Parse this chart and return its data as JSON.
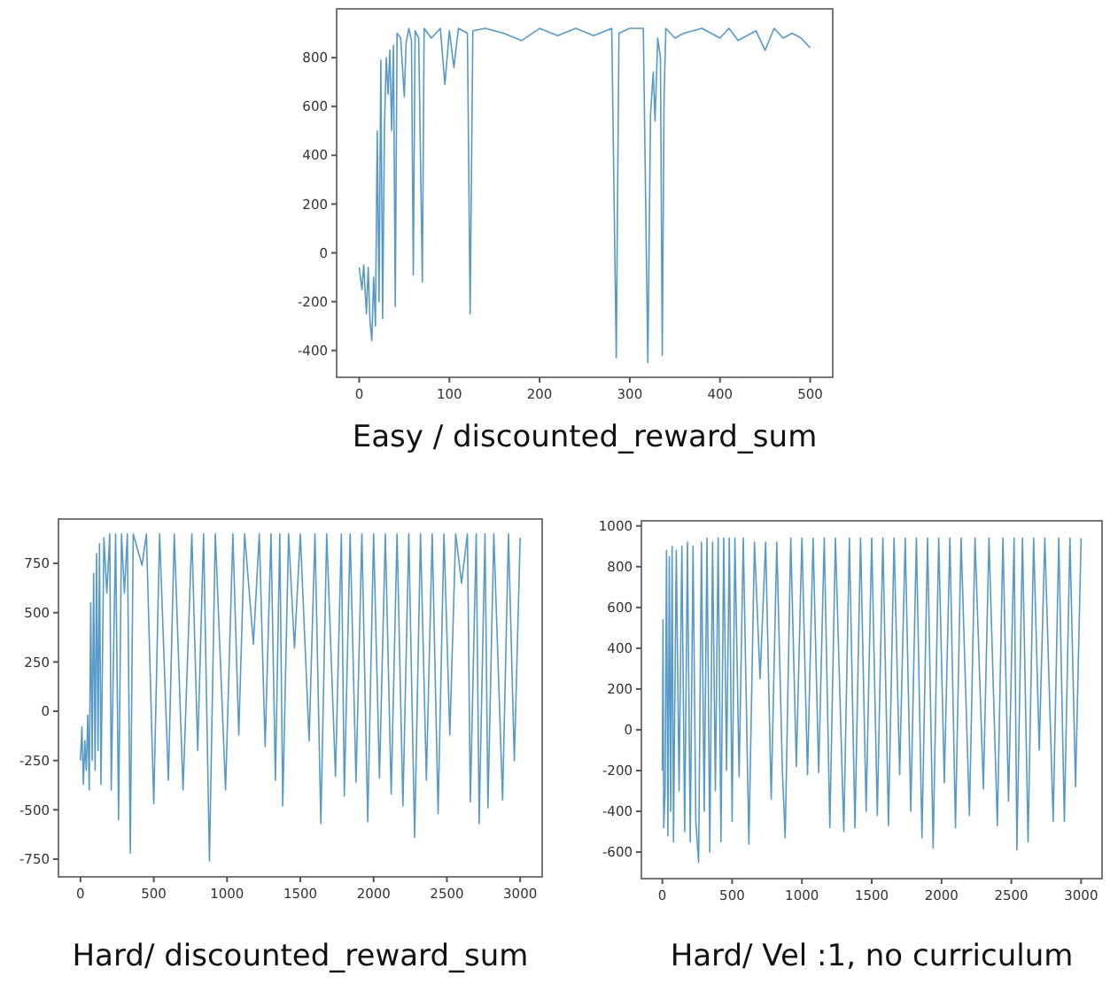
{
  "chart_data": [
    {
      "type": "line",
      "title": "Easy / discounted_reward_sum",
      "xlim": [
        -25,
        525
      ],
      "ylim": [
        -510,
        1000
      ],
      "xticks": [
        0,
        100,
        200,
        300,
        400,
        500
      ],
      "yticks": [
        -400,
        -200,
        0,
        200,
        400,
        600,
        800
      ],
      "x": [
        0,
        3,
        5,
        8,
        10,
        12,
        14,
        16,
        18,
        20,
        22,
        24,
        26,
        28,
        30,
        32,
        34,
        36,
        38,
        40,
        42,
        46,
        50,
        52,
        55,
        58,
        60,
        62,
        66,
        70,
        72,
        80,
        90,
        95,
        100,
        105,
        110,
        120,
        123,
        126,
        140,
        160,
        180,
        200,
        220,
        240,
        260,
        280,
        285,
        288,
        300,
        315,
        320,
        323,
        326,
        328,
        331,
        334,
        336,
        338,
        340,
        350,
        360,
        380,
        400,
        410,
        420,
        440,
        450,
        460,
        470,
        480,
        490,
        500
      ],
      "series": [
        {
          "color": "#1f77b4",
          "values": [
            -60,
            -150,
            -50,
            -250,
            -60,
            -280,
            -360,
            -100,
            -300,
            500,
            -200,
            790,
            -270,
            510,
            800,
            650,
            830,
            500,
            850,
            -220,
            900,
            880,
            640,
            860,
            920,
            870,
            -90,
            910,
            880,
            -120,
            920,
            880,
            920,
            690,
            910,
            760,
            920,
            900,
            -250,
            910,
            920,
            900,
            870,
            920,
            890,
            920,
            890,
            920,
            -430,
            900,
            920,
            920,
            -450,
            570,
            740,
            540,
            880,
            800,
            -420,
            640,
            920,
            880,
            900,
            920,
            880,
            920,
            870,
            910,
            830,
            920,
            880,
            900,
            880,
            840
          ]
        }
      ]
    },
    {
      "type": "line",
      "title": "Hard/ discounted_reward_sum",
      "xlim": [
        -150,
        3150
      ],
      "ylim": [
        -840,
        975
      ],
      "xticks": [
        0,
        500,
        1000,
        1500,
        2000,
        2500,
        3000
      ],
      "yticks": [
        -750,
        -500,
        -250,
        0,
        250,
        500,
        750
      ],
      "x": [
        0,
        10,
        20,
        30,
        40,
        50,
        60,
        70,
        80,
        90,
        100,
        110,
        120,
        130,
        140,
        160,
        180,
        200,
        210,
        240,
        260,
        280,
        300,
        320,
        340,
        360,
        420,
        450,
        500,
        540,
        600,
        640,
        700,
        760,
        800,
        840,
        880,
        920,
        990,
        1040,
        1080,
        1120,
        1180,
        1220,
        1260,
        1300,
        1330,
        1360,
        1380,
        1420,
        1460,
        1500,
        1560,
        1600,
        1640,
        1680,
        1740,
        1780,
        1800,
        1840,
        1880,
        1920,
        1960,
        2000,
        2040,
        2080,
        2120,
        2160,
        2200,
        2240,
        2280,
        2320,
        2360,
        2400,
        2440,
        2480,
        2520,
        2560,
        2600,
        2640,
        2660,
        2700,
        2720,
        2760,
        2780,
        2820,
        2880,
        2920,
        2960,
        3000
      ],
      "series": [
        {
          "color": "#1f77b4",
          "values": [
            -250,
            -80,
            -370,
            -150,
            -300,
            -20,
            -400,
            550,
            -250,
            700,
            -300,
            800,
            -200,
            850,
            -370,
            880,
            600,
            900,
            -400,
            900,
            -550,
            900,
            600,
            900,
            -720,
            900,
            740,
            900,
            -470,
            900,
            -350,
            900,
            -400,
            900,
            -200,
            900,
            -760,
            900,
            -400,
            900,
            -120,
            900,
            340,
            900,
            -180,
            900,
            -350,
            900,
            -480,
            900,
            320,
            900,
            -150,
            900,
            -570,
            900,
            -330,
            900,
            -430,
            900,
            -360,
            900,
            -560,
            900,
            -340,
            900,
            -420,
            900,
            -480,
            900,
            -640,
            900,
            -350,
            900,
            -520,
            900,
            -120,
            900,
            650,
            900,
            -460,
            900,
            -570,
            900,
            -490,
            900,
            -450,
            900,
            -250,
            880
          ]
        }
      ]
    },
    {
      "type": "line",
      "title": "Hard/ Vel :1, no curriculum",
      "xlim": [
        -150,
        3150
      ],
      "ylim": [
        -730,
        1025
      ],
      "xticks": [
        0,
        500,
        1000,
        1500,
        2000,
        2500,
        3000
      ],
      "yticks": [
        -600,
        -400,
        -200,
        0,
        200,
        400,
        600,
        800,
        1000
      ],
      "x": [
        0,
        5,
        10,
        20,
        30,
        40,
        50,
        60,
        70,
        80,
        100,
        120,
        140,
        160,
        180,
        200,
        220,
        240,
        260,
        280,
        300,
        320,
        340,
        360,
        380,
        400,
        420,
        440,
        460,
        480,
        500,
        520,
        550,
        580,
        620,
        660,
        700,
        740,
        780,
        820,
        860,
        880,
        920,
        960,
        1000,
        1040,
        1080,
        1120,
        1160,
        1200,
        1240,
        1300,
        1340,
        1380,
        1420,
        1460,
        1500,
        1540,
        1580,
        1620,
        1660,
        1700,
        1740,
        1780,
        1820,
        1860,
        1900,
        1940,
        1980,
        2020,
        2060,
        2100,
        2140,
        2200,
        2240,
        2300,
        2340,
        2400,
        2440,
        2480,
        2520,
        2540,
        2580,
        2620,
        2660,
        2700,
        2740,
        2800,
        2840,
        2880,
        2920,
        2960,
        3000
      ],
      "series": [
        {
          "color": "#1f77b4",
          "values": [
            -200,
            540,
            -480,
            -300,
            880,
            -520,
            850,
            -400,
            900,
            -550,
            880,
            -300,
            900,
            -500,
            920,
            -550,
            900,
            -450,
            -650,
            920,
            -400,
            940,
            -600,
            920,
            -300,
            940,
            -550,
            940,
            -200,
            940,
            -450,
            940,
            -230,
            940,
            -560,
            920,
            250,
            920,
            -340,
            920,
            -200,
            -530,
            940,
            -180,
            940,
            -220,
            940,
            -210,
            940,
            -480,
            940,
            -500,
            940,
            -480,
            940,
            -400,
            940,
            -420,
            940,
            -470,
            940,
            -220,
            940,
            -400,
            940,
            -530,
            940,
            -580,
            940,
            -260,
            940,
            -480,
            940,
            -420,
            940,
            -290,
            940,
            -470,
            940,
            -350,
            940,
            -590,
            940,
            -550,
            940,
            -100,
            940,
            -450,
            940,
            -450,
            940,
            -280,
            940
          ]
        }
      ]
    }
  ]
}
